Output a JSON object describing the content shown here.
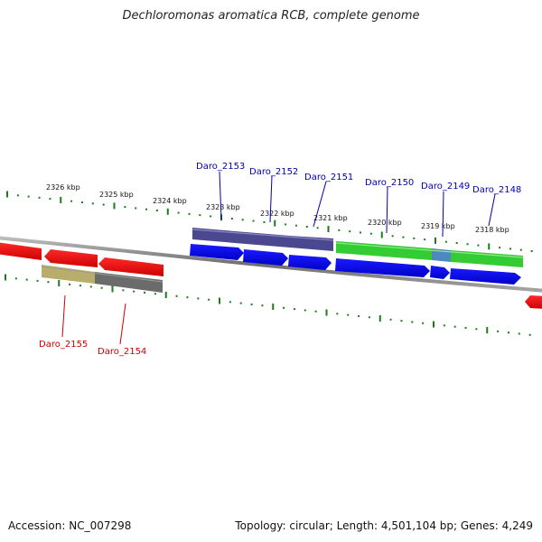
{
  "title": "Dechloromonas aromatica RCB, complete genome",
  "footer": {
    "accession": "Accession: NC_007298",
    "stats": "Topology: circular; Length: 4,501,104 bp; Genes: 4,249"
  },
  "colors": {
    "backbone": "#8a8a8a",
    "tick": "#1f7a1f",
    "forward_cds": "#1010ee",
    "reverse_cds": "#ee1111",
    "forward_label": "#0000aa",
    "reverse_label": "#cc0000",
    "cog_purple": "#4b4890",
    "cog_green": "#33cc33",
    "cog_teal": "#4d88c0",
    "cog_olive": "#b9ad6b",
    "cog_gray": "#6b6b6b"
  },
  "kbp_ticks": [
    "2326 kbp",
    "2325 kbp",
    "2324 kbp",
    "2323 kbp",
    "2322 kbp",
    "2321 kbp",
    "2320 kbp",
    "2319 kbp",
    "2318 kbp"
  ],
  "forward_genes": [
    "Daro_2153",
    "Daro_2152",
    "Daro_2151",
    "Daro_2150",
    "Daro_2149",
    "Daro_2148"
  ],
  "reverse_genes": [
    "Daro_2155",
    "Daro_2154"
  ]
}
